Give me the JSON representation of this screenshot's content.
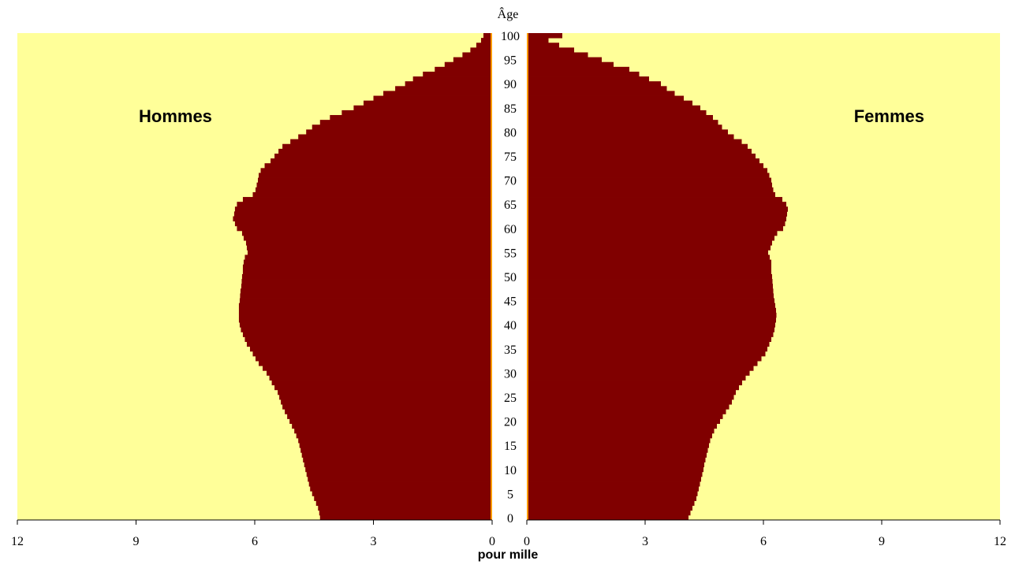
{
  "chart_data": {
    "type": "bar",
    "subtype": "population-pyramid",
    "orientation": "horizontal",
    "ages": [
      0,
      1,
      2,
      3,
      4,
      5,
      6,
      7,
      8,
      9,
      10,
      11,
      12,
      13,
      14,
      15,
      16,
      17,
      18,
      19,
      20,
      21,
      22,
      23,
      24,
      25,
      26,
      27,
      28,
      29,
      30,
      31,
      32,
      33,
      34,
      35,
      36,
      37,
      38,
      39,
      40,
      41,
      42,
      43,
      44,
      45,
      46,
      47,
      48,
      49,
      50,
      51,
      52,
      53,
      54,
      55,
      56,
      57,
      58,
      59,
      60,
      61,
      62,
      63,
      64,
      65,
      66,
      67,
      68,
      69,
      70,
      71,
      72,
      73,
      74,
      75,
      76,
      77,
      78,
      79,
      80,
      81,
      82,
      83,
      84,
      85,
      86,
      87,
      88,
      89,
      90,
      91,
      92,
      93,
      94,
      95,
      96,
      97,
      98,
      99,
      100
    ],
    "series": [
      {
        "name": "Hommes",
        "values": [
          4.35,
          4.37,
          4.4,
          4.45,
          4.5,
          4.55,
          4.6,
          4.63,
          4.66,
          4.69,
          4.72,
          4.75,
          4.78,
          4.81,
          4.84,
          4.87,
          4.9,
          4.95,
          5.0,
          5.06,
          5.12,
          5.18,
          5.24,
          5.3,
          5.34,
          5.38,
          5.42,
          5.5,
          5.57,
          5.63,
          5.7,
          5.8,
          5.9,
          5.98,
          6.05,
          6.12,
          6.2,
          6.25,
          6.3,
          6.35,
          6.38,
          6.4,
          6.4,
          6.4,
          6.4,
          6.38,
          6.37,
          6.36,
          6.34,
          6.33,
          6.32,
          6.3,
          6.3,
          6.28,
          6.25,
          6.18,
          6.2,
          6.22,
          6.28,
          6.32,
          6.45,
          6.5,
          6.55,
          6.52,
          6.5,
          6.45,
          6.3,
          6.05,
          5.98,
          5.95,
          5.92,
          5.9,
          5.85,
          5.75,
          5.6,
          5.5,
          5.4,
          5.3,
          5.1,
          4.9,
          4.7,
          4.55,
          4.35,
          4.1,
          3.8,
          3.5,
          3.25,
          3.0,
          2.75,
          2.45,
          2.2,
          2.0,
          1.75,
          1.45,
          1.2,
          0.98,
          0.75,
          0.55,
          0.4,
          0.28,
          0.22
        ]
      },
      {
        "name": "Femmes",
        "values": [
          4.1,
          4.15,
          4.2,
          4.25,
          4.3,
          4.33,
          4.36,
          4.39,
          4.42,
          4.45,
          4.48,
          4.5,
          4.53,
          4.56,
          4.59,
          4.62,
          4.65,
          4.7,
          4.75,
          4.82,
          4.9,
          4.97,
          5.05,
          5.13,
          5.2,
          5.25,
          5.3,
          5.38,
          5.46,
          5.55,
          5.65,
          5.75,
          5.85,
          5.95,
          6.05,
          6.1,
          6.15,
          6.2,
          6.25,
          6.28,
          6.3,
          6.32,
          6.33,
          6.32,
          6.3,
          6.28,
          6.26,
          6.25,
          6.24,
          6.23,
          6.22,
          6.2,
          6.2,
          6.2,
          6.16,
          6.12,
          6.18,
          6.22,
          6.28,
          6.35,
          6.5,
          6.55,
          6.58,
          6.6,
          6.62,
          6.58,
          6.48,
          6.3,
          6.25,
          6.22,
          6.2,
          6.15,
          6.1,
          6.0,
          5.9,
          5.8,
          5.7,
          5.6,
          5.45,
          5.25,
          5.1,
          4.95,
          4.85,
          4.72,
          4.55,
          4.4,
          4.2,
          3.98,
          3.75,
          3.55,
          3.4,
          3.1,
          2.85,
          2.6,
          2.2,
          1.9,
          1.55,
          1.2,
          0.82,
          0.55,
          0.9
        ]
      }
    ],
    "xlim": [
      0,
      12
    ],
    "xticks": [
      "12",
      "9",
      "6",
      "3",
      "0"
    ],
    "xticks_right": [
      "0",
      "3",
      "6",
      "9",
      "12"
    ],
    "yticks": [
      "0",
      "5",
      "10",
      "15",
      "20",
      "25",
      "30",
      "35",
      "40",
      "45",
      "50",
      "55",
      "60",
      "65",
      "70",
      "75",
      "80",
      "85",
      "90",
      "95",
      "100"
    ],
    "ylabel": "Âge",
    "xlabel": "pour mille",
    "left_label": "Hommes",
    "right_label": "Femmes",
    "colors": {
      "bar": "#800000",
      "background": "#ffff99",
      "baseline": "#ff9900"
    }
  }
}
